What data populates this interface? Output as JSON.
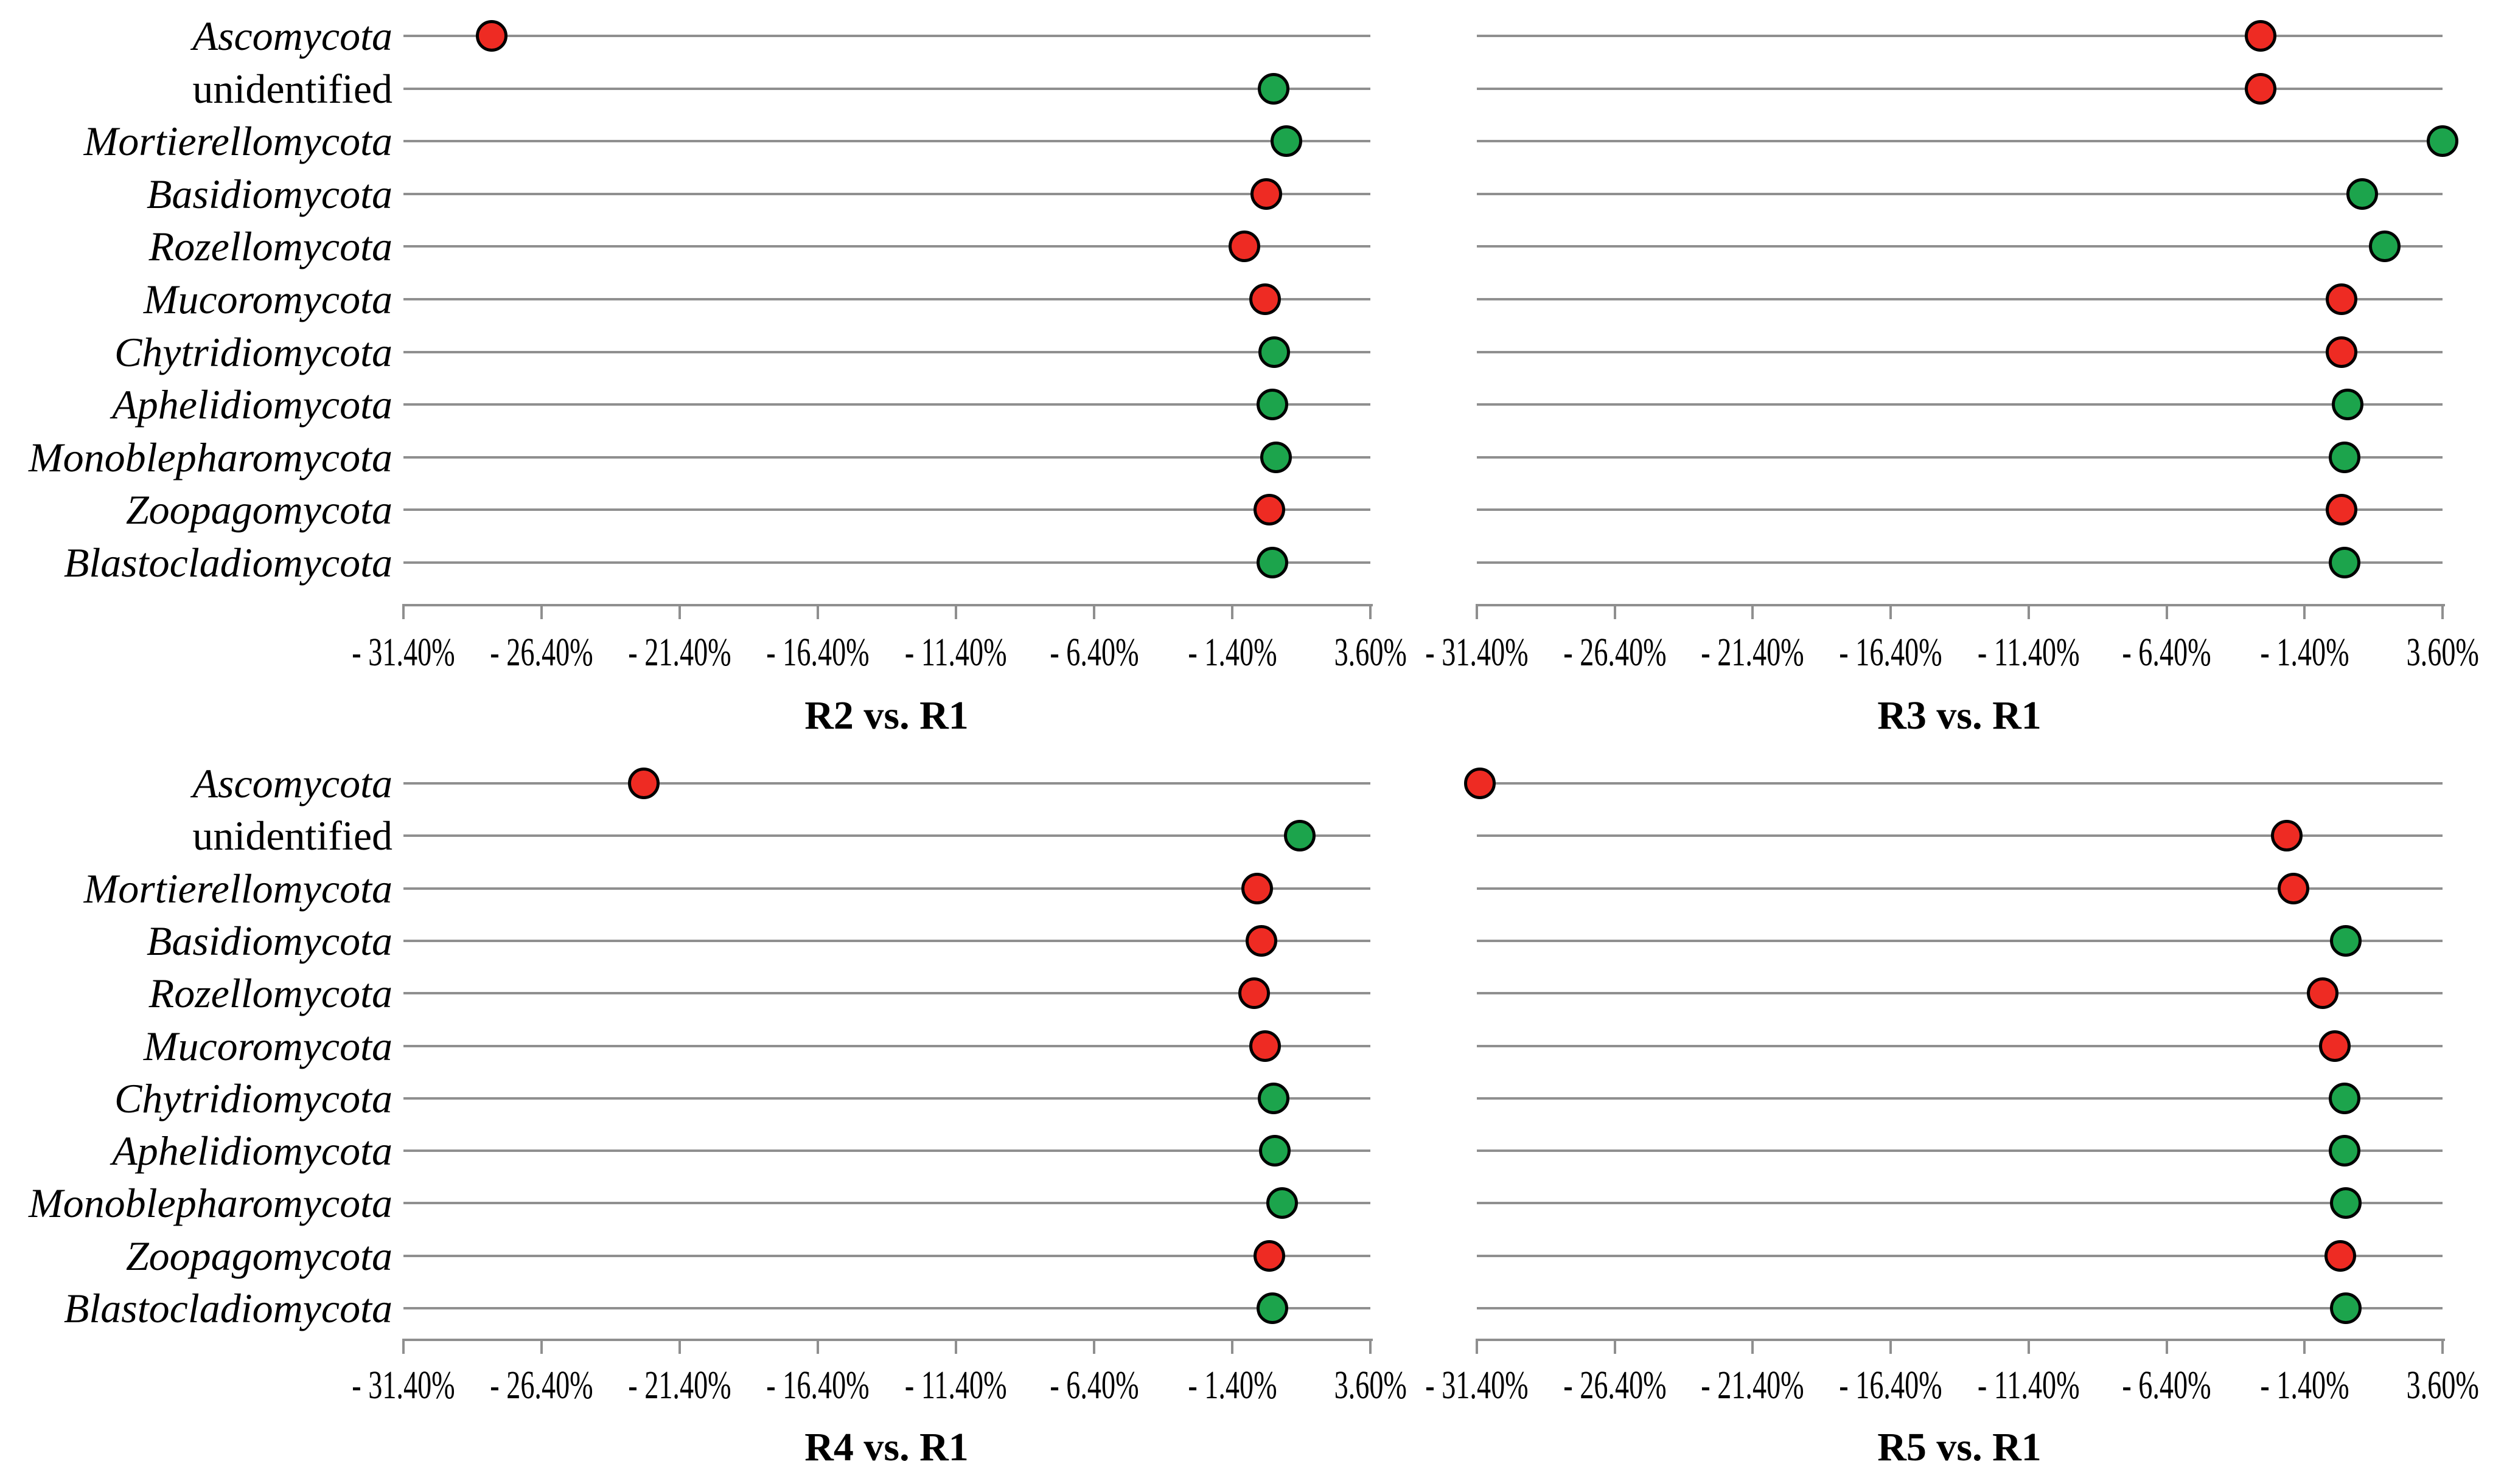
{
  "chart_data": {
    "type": "scatter",
    "layout_hint": "four-panel dot plot, 2x2 grid, shared category axis on left panels, gridline per category row, x ticks below each panel, no legend",
    "categories": [
      "Ascomycota",
      "unidentified",
      "Mortierellomycota",
      "Basidiomycota",
      "Rozellomycota",
      "Mucoromycota",
      "Chytridiomycota",
      "Aphelidiomycota",
      "Monoblepharomycota",
      "Zoopagomycota",
      "Blastocladiomycota"
    ],
    "upright_categories": [
      "unidentified"
    ],
    "x_axis": {
      "tick_labels": [
        "- 31.40%",
        "- 26.40%",
        "- 21.40%",
        "- 16.40%",
        "- 11.40%",
        "- 6.40%",
        "- 1.40%",
        "3.60%"
      ],
      "tick_values": [
        -31.4,
        -26.4,
        -21.4,
        -16.4,
        -11.4,
        -6.4,
        -1.4,
        3.6
      ],
      "min": -31.4,
      "max": 3.6,
      "unit": "%"
    },
    "colors": {
      "increase": "#1ca44c",
      "decrease": "#ee2b23",
      "marker_outline": "#000000",
      "gridline": "#8f8f8f",
      "axis": "#8f8f8f",
      "text": "#000000"
    },
    "panels": [
      {
        "title": "R2 vs. R1",
        "grid_position": "top-left",
        "show_category_labels": true,
        "values": [
          -28.2,
          0.1,
          0.57,
          -0.17,
          -0.95,
          -0.22,
          0.13,
          0.05,
          0.18,
          -0.05,
          0.05
        ],
        "directions": [
          "decrease",
          "increase",
          "increase",
          "decrease",
          "decrease",
          "decrease",
          "increase",
          "increase",
          "increase",
          "decrease",
          "increase"
        ]
      },
      {
        "title": "R3 vs. R1",
        "grid_position": "top-right",
        "show_category_labels": false,
        "values": [
          -3.0,
          -3.0,
          3.6,
          0.68,
          1.5,
          -0.05,
          -0.05,
          0.15,
          0.05,
          -0.05,
          0.05
        ],
        "directions": [
          "decrease",
          "decrease",
          "increase",
          "increase",
          "increase",
          "decrease",
          "decrease",
          "increase",
          "increase",
          "decrease",
          "increase"
        ]
      },
      {
        "title": "R4 vs. R1",
        "grid_position": "bottom-left",
        "show_category_labels": true,
        "values": [
          -22.7,
          1.05,
          -0.5,
          -0.35,
          -0.6,
          -0.2,
          0.1,
          0.15,
          0.4,
          -0.05,
          0.05
        ],
        "directions": [
          "decrease",
          "increase",
          "decrease",
          "decrease",
          "decrease",
          "decrease",
          "increase",
          "increase",
          "increase",
          "decrease",
          "increase"
        ]
      },
      {
        "title": "R5 vs. R1",
        "grid_position": "bottom-right",
        "show_category_labels": false,
        "values": [
          -31.3,
          -2.05,
          -1.8,
          0.1,
          -0.75,
          -0.3,
          0.05,
          0.05,
          0.1,
          -0.1,
          0.1
        ],
        "directions": [
          "decrease",
          "decrease",
          "decrease",
          "increase",
          "decrease",
          "decrease",
          "increase",
          "increase",
          "increase",
          "decrease",
          "increase"
        ]
      }
    ]
  }
}
